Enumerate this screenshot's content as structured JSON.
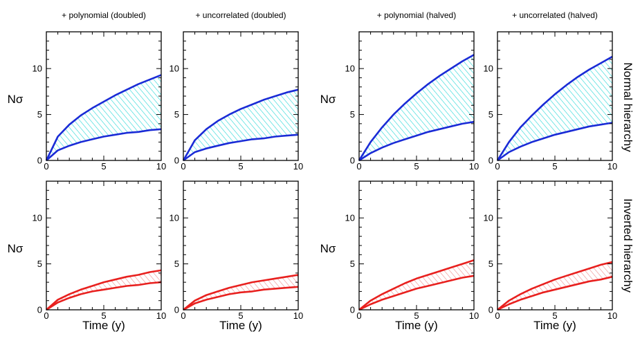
{
  "chart_data": [
    {
      "type": "area",
      "title": "+ polynomial (doubled)",
      "row_label": "Normal hierarchy",
      "ylabel": "Nσ",
      "xlabel": "",
      "xlim": [
        0,
        10
      ],
      "ylim": [
        0,
        14
      ],
      "xticks": [
        0,
        5,
        10
      ],
      "yticks": [
        0,
        5,
        10
      ],
      "color": "#1a2bd6",
      "fill": "#22d6d6",
      "x": [
        0,
        1,
        2,
        3,
        4,
        5,
        6,
        7,
        8,
        9,
        10
      ],
      "series": [
        {
          "values": [
            0,
            1.1,
            1.6,
            2.0,
            2.3,
            2.6,
            2.8,
            3.0,
            3.1,
            3.3,
            3.4
          ]
        },
        {
          "values": [
            0,
            2.6,
            3.9,
            4.9,
            5.7,
            6.4,
            7.1,
            7.7,
            8.3,
            8.8,
            9.3
          ]
        }
      ]
    },
    {
      "type": "area",
      "title": "+ uncorrelated (doubled)",
      "row_label": "Normal hierarchy",
      "ylabel": "",
      "xlabel": "",
      "xlim": [
        0,
        10
      ],
      "ylim": [
        0,
        14
      ],
      "xticks": [
        0,
        5,
        10
      ],
      "yticks": [
        0,
        5,
        10
      ],
      "color": "#1a2bd6",
      "fill": "#22d6d6",
      "x": [
        0,
        1,
        2,
        3,
        4,
        5,
        6,
        7,
        8,
        9,
        10
      ],
      "series": [
        {
          "values": [
            0,
            0.9,
            1.3,
            1.6,
            1.9,
            2.1,
            2.3,
            2.4,
            2.6,
            2.7,
            2.8
          ]
        },
        {
          "values": [
            0,
            2.2,
            3.4,
            4.3,
            5.0,
            5.6,
            6.1,
            6.6,
            7.0,
            7.4,
            7.7
          ]
        }
      ]
    },
    {
      "type": "area",
      "title": "+ polynomial (halved)",
      "row_label": "Normal hierarchy",
      "ylabel": "Nσ",
      "xlabel": "",
      "xlim": [
        0,
        10
      ],
      "ylim": [
        0,
        14
      ],
      "xticks": [
        0,
        5,
        10
      ],
      "yticks": [
        0,
        5,
        10
      ],
      "color": "#1a2bd6",
      "fill": "#22d6d6",
      "x": [
        0,
        1,
        2,
        3,
        4,
        5,
        6,
        7,
        8,
        9,
        10
      ],
      "series": [
        {
          "values": [
            0,
            0.8,
            1.4,
            1.9,
            2.3,
            2.7,
            3.1,
            3.4,
            3.7,
            4.0,
            4.2
          ]
        },
        {
          "values": [
            0,
            2.0,
            3.6,
            5.0,
            6.2,
            7.3,
            8.3,
            9.2,
            10.0,
            10.8,
            11.5
          ]
        }
      ]
    },
    {
      "type": "area",
      "title": "+ uncorrelated (halved)",
      "row_label": "Normal hierarchy",
      "ylabel": "",
      "xlabel": "",
      "xlim": [
        0,
        10
      ],
      "ylim": [
        0,
        14
      ],
      "xticks": [
        0,
        5,
        10
      ],
      "yticks": [
        0,
        5,
        10
      ],
      "color": "#1a2bd6",
      "fill": "#22d6d6",
      "x": [
        0,
        1,
        2,
        3,
        4,
        5,
        6,
        7,
        8,
        9,
        10
      ],
      "series": [
        {
          "values": [
            0,
            0.9,
            1.5,
            2.0,
            2.4,
            2.8,
            3.1,
            3.4,
            3.7,
            3.9,
            4.1
          ]
        },
        {
          "values": [
            0,
            2.0,
            3.6,
            4.9,
            6.1,
            7.2,
            8.2,
            9.1,
            9.9,
            10.6,
            11.3
          ]
        }
      ]
    },
    {
      "type": "area",
      "title": "",
      "row_label": "Inverted hierarchy",
      "ylabel": "Nσ",
      "xlabel": "Time (y)",
      "xlim": [
        0,
        10
      ],
      "ylim": [
        0,
        14
      ],
      "xticks": [
        0,
        5,
        10
      ],
      "yticks": [
        0,
        5,
        10
      ],
      "color": "#e8201e",
      "fill": "#ee8a8a",
      "x": [
        0,
        1,
        2,
        3,
        4,
        5,
        6,
        7,
        8,
        9,
        10
      ],
      "series": [
        {
          "values": [
            0,
            0.8,
            1.3,
            1.7,
            2.0,
            2.2,
            2.4,
            2.6,
            2.7,
            2.9,
            3.0
          ]
        },
        {
          "values": [
            0,
            1.1,
            1.7,
            2.2,
            2.6,
            3.0,
            3.3,
            3.6,
            3.8,
            4.1,
            4.3
          ]
        }
      ]
    },
    {
      "type": "area",
      "title": "",
      "row_label": "Inverted hierarchy",
      "ylabel": "",
      "xlabel": "Time (y)",
      "xlim": [
        0,
        10
      ],
      "ylim": [
        0,
        14
      ],
      "xticks": [
        0,
        5,
        10
      ],
      "yticks": [
        0,
        5,
        10
      ],
      "color": "#e8201e",
      "fill": "#ee8a8a",
      "x": [
        0,
        1,
        2,
        3,
        4,
        5,
        6,
        7,
        8,
        9,
        10
      ],
      "series": [
        {
          "values": [
            0,
            0.7,
            1.1,
            1.4,
            1.7,
            1.9,
            2.0,
            2.2,
            2.3,
            2.4,
            2.5
          ]
        },
        {
          "values": [
            0,
            1.0,
            1.6,
            2.0,
            2.4,
            2.7,
            3.0,
            3.2,
            3.4,
            3.6,
            3.8
          ]
        }
      ]
    },
    {
      "type": "area",
      "title": "",
      "row_label": "Inverted hierarchy",
      "ylabel": "Nσ",
      "xlabel": "Time (y)",
      "xlim": [
        0,
        10
      ],
      "ylim": [
        0,
        14
      ],
      "xticks": [
        0,
        5,
        10
      ],
      "yticks": [
        0,
        5,
        10
      ],
      "color": "#e8201e",
      "fill": "#ee8a8a",
      "x": [
        0,
        1,
        2,
        3,
        4,
        5,
        6,
        7,
        8,
        9,
        10
      ],
      "series": [
        {
          "values": [
            0,
            0.6,
            1.1,
            1.5,
            1.9,
            2.3,
            2.6,
            2.9,
            3.2,
            3.5,
            3.7
          ]
        },
        {
          "values": [
            0,
            1.0,
            1.7,
            2.3,
            2.9,
            3.4,
            3.8,
            4.2,
            4.6,
            5.0,
            5.4
          ]
        }
      ]
    },
    {
      "type": "area",
      "title": "",
      "row_label": "Inverted hierarchy",
      "ylabel": "",
      "xlabel": "Time (y)",
      "xlim": [
        0,
        10
      ],
      "ylim": [
        0,
        14
      ],
      "xticks": [
        0,
        5,
        10
      ],
      "yticks": [
        0,
        5,
        10
      ],
      "color": "#e8201e",
      "fill": "#ee8a8a",
      "x": [
        0,
        1,
        2,
        3,
        4,
        5,
        6,
        7,
        8,
        9,
        10
      ],
      "series": [
        {
          "values": [
            0,
            0.6,
            1.1,
            1.5,
            1.9,
            2.2,
            2.5,
            2.8,
            3.1,
            3.3,
            3.6
          ]
        },
        {
          "values": [
            0,
            1.0,
            1.7,
            2.3,
            2.8,
            3.3,
            3.7,
            4.1,
            4.5,
            4.9,
            5.2
          ]
        }
      ]
    }
  ],
  "row_labels": [
    "Normal hierarchy",
    "Inverted hierarchy"
  ]
}
